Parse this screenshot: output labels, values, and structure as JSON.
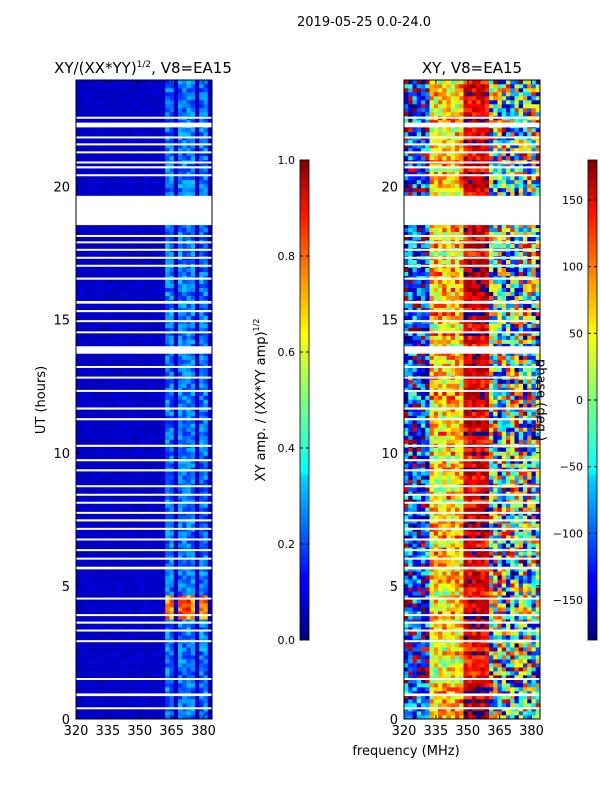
{
  "suptitle": "2019-05-25 0.0-24.0",
  "xlabel": "frequency (MHz)",
  "chart_data": [
    {
      "type": "heatmap",
      "title": "XY/(XX*YY)^1/2, V8=EA15",
      "title_main": "XY/(XX*YY)",
      "title_sup": "1/2",
      "title_rest": ", V8=EA15",
      "ylabel": "UT (hours)",
      "xlim": [
        320,
        384
      ],
      "ylim": [
        0,
        24
      ],
      "xticks": [
        "320",
        "335",
        "350",
        "365",
        "380"
      ],
      "xtick_values": [
        320,
        335,
        350,
        365,
        380
      ],
      "yticks": [
        "0",
        "5",
        "10",
        "15",
        "20"
      ],
      "ytick_values": [
        0,
        5,
        10,
        15,
        20
      ],
      "colorbar": {
        "label": "XY amp. / (XX*YY amp)",
        "label_sup": "1/2",
        "range": [
          0.0,
          1.0
        ],
        "ticks": [
          "0.0",
          "0.2",
          "0.4",
          "0.6",
          "0.8",
          "1.0"
        ],
        "tick_values": [
          0,
          0.2,
          0.4,
          0.6,
          0.8,
          1.0
        ]
      },
      "background_level": 0.05,
      "bright_channels_mhz": [
        [
          362,
          366
        ],
        [
          367.5,
          371.5
        ],
        [
          372.5,
          376.5
        ],
        [
          378,
          382
        ]
      ],
      "channel_level": 0.25,
      "flare_hours": [
        3.7,
        4.6
      ],
      "flare_level": 0.8
    },
    {
      "type": "heatmap",
      "title": "XY, V8=EA15",
      "xlim": [
        320,
        384
      ],
      "ylim": [
        0,
        24
      ],
      "xticks": [
        "320",
        "335",
        "350",
        "365",
        "380"
      ],
      "xtick_values": [
        320,
        335,
        350,
        365,
        380
      ],
      "yticks": [
        "0",
        "5",
        "10",
        "15",
        "20"
      ],
      "ytick_values": [
        0,
        5,
        10,
        15,
        20
      ],
      "colorbar": {
        "label": "phase (deg.)",
        "range": [
          -180,
          180
        ],
        "ticks": [
          "−150",
          "−100",
          "−50",
          "0",
          "50",
          "100",
          "150"
        ],
        "tick_values": [
          -150,
          -100,
          -50,
          0,
          50,
          100,
          150
        ]
      },
      "phase_regions": [
        {
          "mhz": [
            320,
            333
          ],
          "phase": -120,
          "noise": 90
        },
        {
          "mhz": [
            333,
            348
          ],
          "phase": 60,
          "noise": 60
        },
        {
          "mhz": [
            348,
            361
          ],
          "phase": 150,
          "noise": 30
        },
        {
          "mhz": [
            361,
            384
          ],
          "phase": -20,
          "noise": 160
        }
      ],
      "colormap": "jet"
    }
  ],
  "data_gaps_hours": [
    [
      22.55,
      22.62
    ],
    [
      22.22,
      22.4
    ],
    [
      21.82,
      21.88
    ],
    [
      21.55,
      21.62
    ],
    [
      21.25,
      21.32
    ],
    [
      20.88,
      20.94
    ],
    [
      20.68,
      20.76
    ],
    [
      20.4,
      20.46
    ],
    [
      18.55,
      19.65
    ],
    [
      18.12,
      18.18
    ],
    [
      17.88,
      17.94
    ],
    [
      17.6,
      17.66
    ],
    [
      17.3,
      17.36
    ],
    [
      17.0,
      17.06
    ],
    [
      16.5,
      16.58
    ],
    [
      15.6,
      15.7
    ],
    [
      15.28,
      15.36
    ],
    [
      14.92,
      14.98
    ],
    [
      14.5,
      14.56
    ],
    [
      13.72,
      14.0
    ],
    [
      13.2,
      13.26
    ],
    [
      12.8,
      12.86
    ],
    [
      12.3,
      12.36
    ],
    [
      11.62,
      11.7
    ],
    [
      11.22,
      11.3
    ],
    [
      10.22,
      10.3
    ],
    [
      9.68,
      9.76
    ],
    [
      9.3,
      9.38
    ],
    [
      8.72,
      8.78
    ],
    [
      8.4,
      8.46
    ],
    [
      8.1,
      8.16
    ],
    [
      7.72,
      7.78
    ],
    [
      7.42,
      7.5
    ],
    [
      7.12,
      7.18
    ],
    [
      6.72,
      6.78
    ],
    [
      6.32,
      6.38
    ],
    [
      6.0,
      6.06
    ],
    [
      5.62,
      5.72
    ],
    [
      4.5,
      4.56
    ],
    [
      3.88,
      3.94
    ],
    [
      3.58,
      3.66
    ],
    [
      3.3,
      3.36
    ],
    [
      2.9,
      2.96
    ],
    [
      1.48,
      1.54
    ],
    [
      0.86,
      0.96
    ],
    [
      0.38,
      0.44
    ]
  ]
}
